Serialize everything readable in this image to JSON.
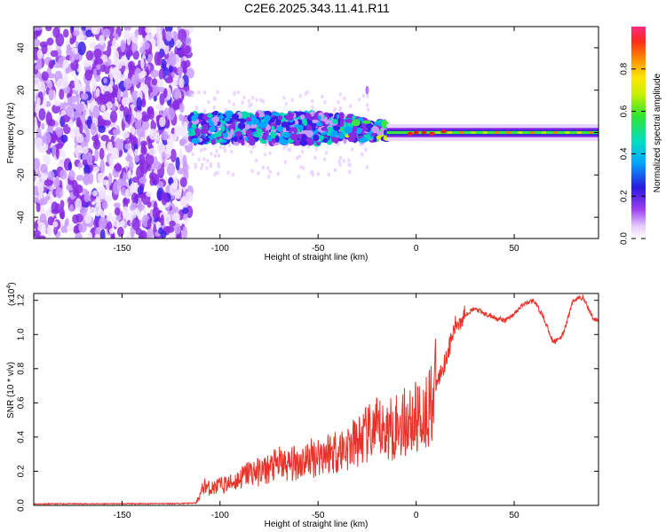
{
  "title": "C2E6.2025.343.11.41.R11",
  "chart_data": [
    {
      "type": "heatmap",
      "xlabel": "Height of straight line (km)",
      "ylabel": "Frequency (Hz)",
      "xlim": [
        -195,
        93
      ],
      "ylim": [
        -50,
        50
      ],
      "xticks": [
        -150,
        -100,
        -50,
        0,
        50
      ],
      "yticks": [
        -40,
        -20,
        0,
        20,
        40
      ],
      "colorbar": {
        "label": "Normalized spectral amplitude",
        "range": [
          0,
          1
        ],
        "ticks": [
          "0.0",
          "0.2",
          "0.4",
          "0.6",
          "0.8"
        ]
      }
    },
    {
      "type": "line",
      "xlabel": "Height of straight line (km)",
      "ylabel": "SNR (10 * v/v)",
      "scale_label": "(x10",
      "scale_exponent": "4",
      "xlim": [
        -195,
        93
      ],
      "ylim": [
        0,
        1.24
      ],
      "xticks": [
        -150,
        -100,
        -50,
        0,
        50
      ],
      "yticks": [
        "0.0",
        "0.2",
        "0.4",
        "0.6",
        "0.8",
        "1.0",
        "1.2"
      ],
      "series": [
        {
          "name": "SNR",
          "color": "#e8332a",
          "x": [
            -195,
            -180,
            -160,
            -140,
            -120,
            -112,
            -108,
            -105,
            -100,
            -95,
            -90,
            -85,
            -80,
            -75,
            -70,
            -65,
            -60,
            -55,
            -50,
            -45,
            -40,
            -35,
            -30,
            -25,
            -20,
            -15,
            -10,
            -5,
            0,
            5,
            10,
            15,
            20,
            25,
            30,
            35,
            40,
            45,
            50,
            55,
            60,
            65,
            70,
            75,
            80,
            85,
            90,
            93
          ],
          "y": [
            0.01,
            0.012,
            0.012,
            0.013,
            0.015,
            0.02,
            0.12,
            0.1,
            0.12,
            0.13,
            0.16,
            0.2,
            0.2,
            0.22,
            0.25,
            0.24,
            0.26,
            0.28,
            0.3,
            0.32,
            0.33,
            0.35,
            0.38,
            0.42,
            0.45,
            0.45,
            0.48,
            0.5,
            0.52,
            0.56,
            0.7,
            0.85,
            1.05,
            1.12,
            1.15,
            1.12,
            1.1,
            1.08,
            1.12,
            1.18,
            1.2,
            1.1,
            0.95,
            1.0,
            1.2,
            1.22,
            1.1,
            1.08
          ]
        }
      ]
    }
  ]
}
